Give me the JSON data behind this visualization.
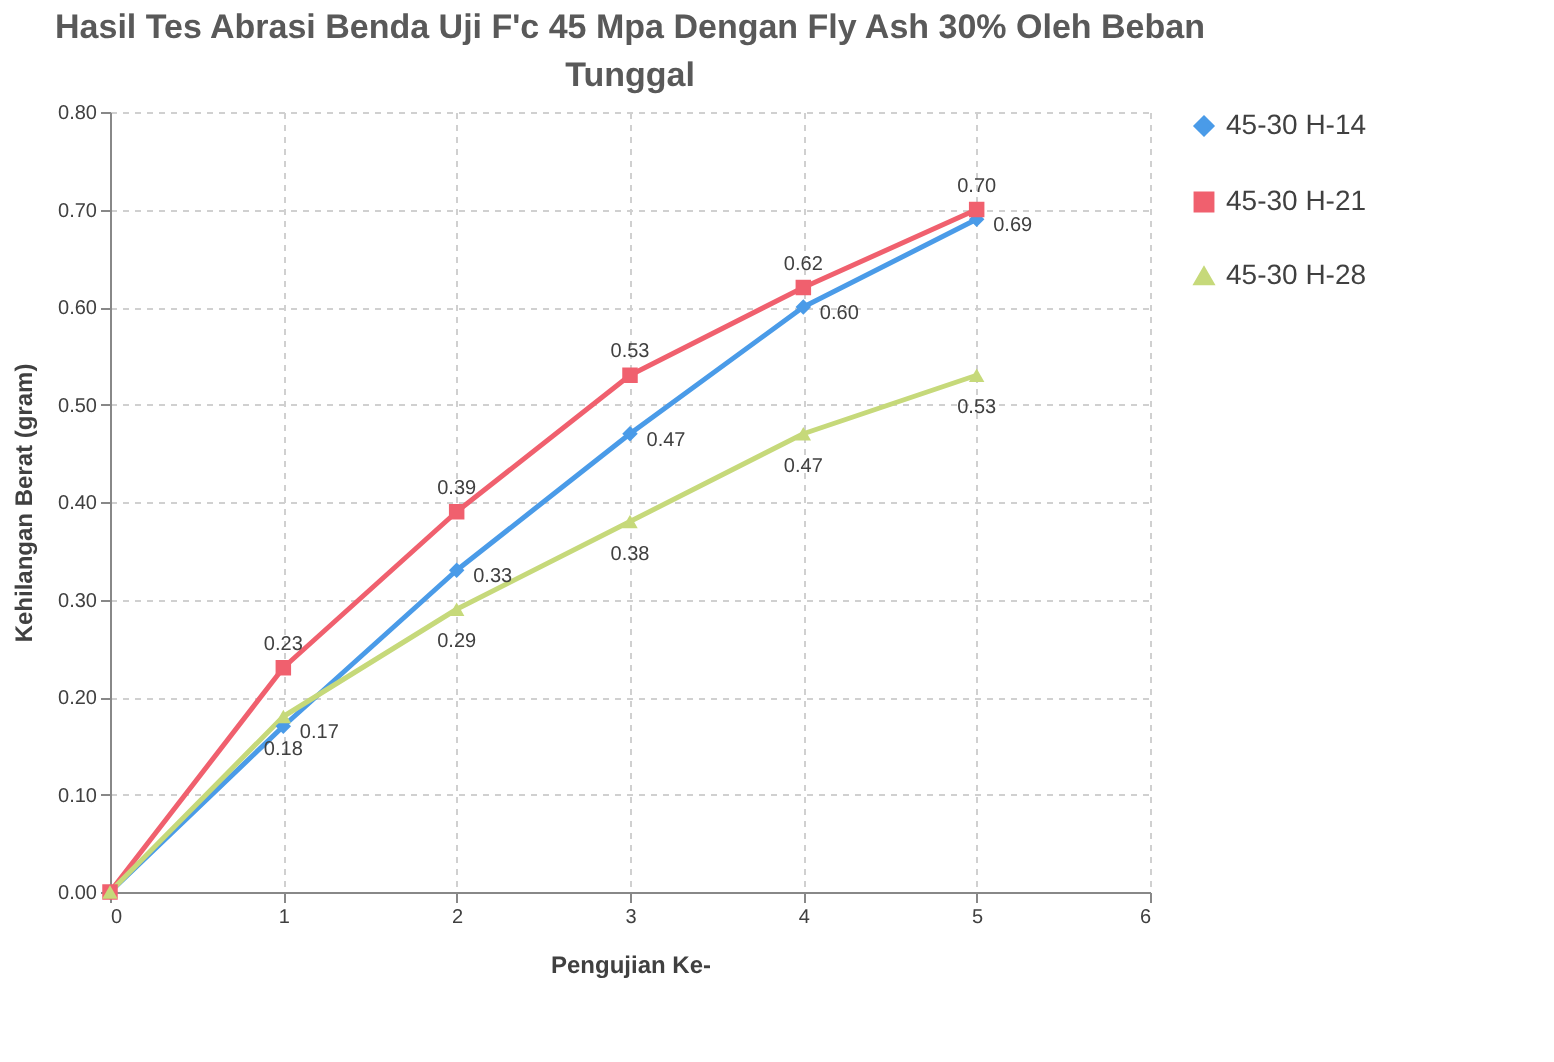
{
  "chart_data": {
    "type": "line",
    "title": "Hasil Tes Abrasi Benda Uji F'c 45 Mpa Dengan Fly Ash  30% Oleh Beban Tunggal",
    "xlabel": "Pengujian Ke-",
    "ylabel": "Kehilangan Berat (gram)",
    "x": [
      0,
      1,
      2,
      3,
      4,
      5
    ],
    "series": [
      {
        "name": "45-30 H-14",
        "color": "#4a9be8",
        "marker": "diamond",
        "values": [
          0,
          0.17,
          0.33,
          0.47,
          0.6,
          0.69
        ],
        "value_labels": [
          null,
          "0.17",
          "0.33",
          "0.47",
          "0.60",
          "0.69"
        ]
      },
      {
        "name": "45-30 H-21",
        "color": "#f0606e",
        "marker": "square",
        "values": [
          0,
          0.23,
          0.39,
          0.53,
          0.62,
          0.7
        ],
        "value_labels": [
          null,
          "0.23",
          "0.39",
          "0.53",
          "0.62",
          "0.70"
        ]
      },
      {
        "name": "45-30 H-28",
        "color": "#c6d97a",
        "marker": "triangle",
        "values": [
          0,
          0.18,
          0.29,
          0.38,
          0.47,
          0.53
        ],
        "value_labels": [
          null,
          "0.18",
          "0.29",
          "0.38",
          "0.47",
          "0.53"
        ]
      }
    ],
    "xlim": [
      0,
      6
    ],
    "xticks": [
      0,
      1,
      2,
      3,
      4,
      5,
      6
    ],
    "ylim": [
      0,
      0.8
    ],
    "yticks": [
      {
        "value": 0,
        "label": "0.00"
      },
      {
        "value": 0.1,
        "label": "0.10"
      },
      {
        "value": 0.2,
        "label": "0.20"
      },
      {
        "value": 0.3,
        "label": "0.30"
      },
      {
        "value": 0.4,
        "label": "0.40"
      },
      {
        "value": 0.5,
        "label": "0.50"
      },
      {
        "value": 0.6,
        "label": "0.60"
      },
      {
        "value": 0.7,
        "label": "0.70"
      },
      {
        "value": 0.8,
        "label": "0.80"
      }
    ],
    "grid": true,
    "legend": "right",
    "line_style": "solid"
  }
}
